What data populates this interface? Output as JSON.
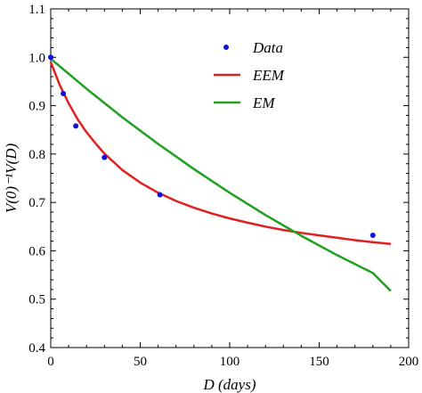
{
  "chart_data": {
    "type": "scatter",
    "xlabel": "D (days)",
    "ylabel": "V(0)⁻¹V(D)",
    "xlim": [
      0,
      200
    ],
    "ylim": [
      0.4,
      1.1
    ],
    "x_ticks": [
      0,
      50,
      100,
      150,
      200
    ],
    "y_ticks": [
      0.4,
      0.5,
      0.6,
      0.7,
      0.8,
      0.9,
      1.0,
      1.1
    ],
    "x_tick_labels": [
      "0",
      "50",
      "100",
      "150",
      "200"
    ],
    "y_tick_labels": [
      "0.4",
      "0.5",
      "0.6",
      "0.7",
      "0.8",
      "0.9",
      "1.0",
      "1.1"
    ],
    "grid": false,
    "legend_position": "top-right",
    "series": [
      {
        "name": "Data",
        "kind": "points",
        "color": "#1111dd",
        "x": [
          0,
          7,
          14,
          30,
          61,
          180
        ],
        "y": [
          1.0,
          0.925,
          0.858,
          0.793,
          0.716,
          0.632
        ]
      },
      {
        "name": "EEM",
        "kind": "line",
        "color": "#e02020",
        "x": [
          0,
          5,
          10,
          15,
          20,
          25,
          30,
          40,
          50,
          60,
          70,
          80,
          90,
          100,
          110,
          120,
          130,
          140,
          150,
          160,
          170,
          180,
          190
        ],
        "y": [
          0.99,
          0.943,
          0.905,
          0.872,
          0.845,
          0.822,
          0.801,
          0.767,
          0.741,
          0.72,
          0.703,
          0.689,
          0.677,
          0.667,
          0.658,
          0.65,
          0.643,
          0.637,
          0.632,
          0.627,
          0.622,
          0.618,
          0.614
        ]
      },
      {
        "name": "EM",
        "kind": "line",
        "color": "#20a020",
        "x": [
          0,
          20,
          40,
          60,
          80,
          100,
          120,
          140,
          160,
          180,
          190
        ],
        "y": [
          0.997,
          0.935,
          0.876,
          0.821,
          0.769,
          0.72,
          0.674,
          0.631,
          0.591,
          0.554,
          0.517
        ]
      }
    ]
  }
}
